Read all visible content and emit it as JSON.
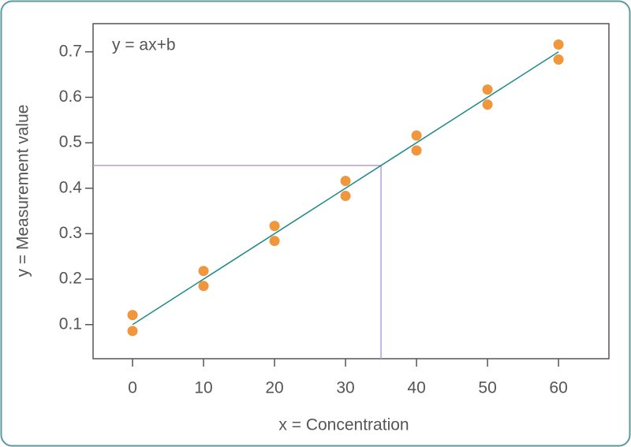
{
  "chart_data": {
    "type": "scatter",
    "annotation": "y = ax+b",
    "xlabel": "x = Concentration",
    "ylabel": "y = Measurement value",
    "xlim": [
      -5.56,
      67.1
    ],
    "ylim": [
      0.025,
      0.762
    ],
    "xticks": [
      0,
      10,
      20,
      30,
      40,
      50,
      60
    ],
    "yticks": [
      0.1,
      0.2,
      0.3,
      0.4,
      0.5,
      0.6,
      0.7
    ],
    "points": {
      "color": "#f0963c",
      "x": [
        0,
        0,
        10,
        10,
        20,
        20,
        30,
        30,
        40,
        40,
        50,
        50,
        60,
        60
      ],
      "y": [
        0.121,
        0.086,
        0.218,
        0.185,
        0.317,
        0.284,
        0.416,
        0.383,
        0.516,
        0.483,
        0.617,
        0.584,
        0.716,
        0.683
      ]
    },
    "fit_line": {
      "color": "#1f8a8a",
      "x": [
        0,
        60
      ],
      "y": [
        0.1,
        0.7
      ]
    },
    "reference": {
      "color": "#b79fd6",
      "x": 35,
      "y": 0.45
    }
  }
}
